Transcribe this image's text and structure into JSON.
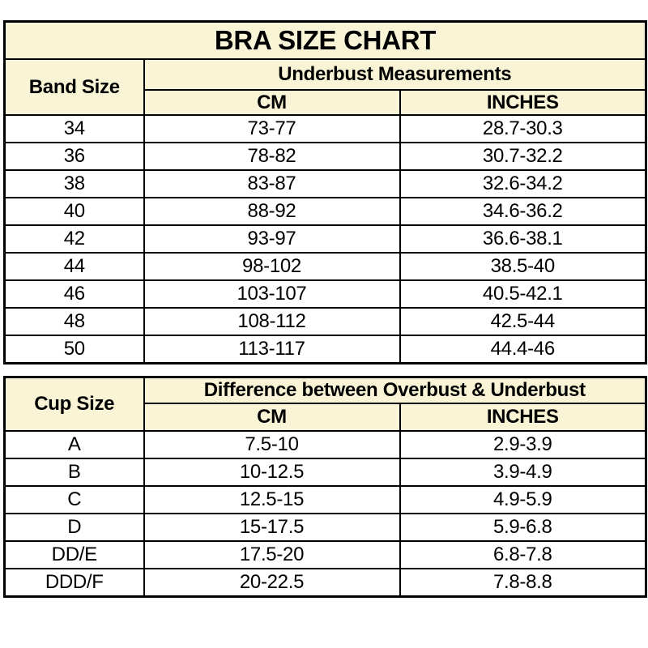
{
  "colors": {
    "header_bg": "#faf4d6",
    "cell_bg": "#ffffff",
    "border": "#000000",
    "text": "#000000"
  },
  "chart_data": [
    {
      "type": "table",
      "title": "BRA SIZE CHART",
      "row_header": "Band Size",
      "group_header": "Underbust Measurements",
      "sub_headers": [
        "CM",
        "INCHES"
      ],
      "rows": [
        [
          "34",
          "73-77",
          "28.7-30.3"
        ],
        [
          "36",
          "78-82",
          "30.7-32.2"
        ],
        [
          "38",
          "83-87",
          "32.6-34.2"
        ],
        [
          "40",
          "88-92",
          "34.6-36.2"
        ],
        [
          "42",
          "93-97",
          "36.6-38.1"
        ],
        [
          "44",
          "98-102",
          "38.5-40"
        ],
        [
          "46",
          "103-107",
          "40.5-42.1"
        ],
        [
          "48",
          "108-112",
          "42.5-44"
        ],
        [
          "50",
          "113-117",
          "44.4-46"
        ]
      ]
    },
    {
      "type": "table",
      "title": "",
      "row_header": "Cup Size",
      "group_header": "Difference between Overbust & Underbust",
      "sub_headers": [
        "CM",
        "INCHES"
      ],
      "rows": [
        [
          "A",
          "7.5-10",
          "2.9-3.9"
        ],
        [
          "B",
          "10-12.5",
          "3.9-4.9"
        ],
        [
          "C",
          "12.5-15",
          "4.9-5.9"
        ],
        [
          "D",
          "15-17.5",
          "5.9-6.8"
        ],
        [
          "DD/E",
          "17.5-20",
          "6.8-7.8"
        ],
        [
          "DDD/F",
          "20-22.5",
          "7.8-8.8"
        ]
      ]
    }
  ]
}
